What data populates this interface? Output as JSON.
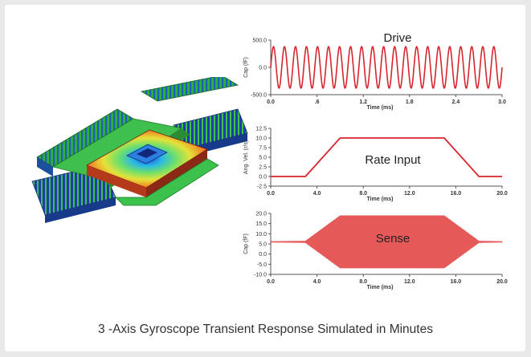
{
  "caption": "3 -Axis Gyroscope Transient Response Simulated in Minutes",
  "colors": {
    "signal": "#d7262d",
    "sense": "#e23c3c",
    "axis": "#555555",
    "text": "#333333"
  },
  "chart_data": [
    {
      "type": "line",
      "title": "Drive",
      "xlabel": "Time (ms)",
      "ylabel": "Cap (fF)",
      "xlim": [
        0.0,
        3.0
      ],
      "ylim": [
        -500.0,
        500.0
      ],
      "xticks": [
        "0.0",
        ".6",
        "1.2",
        "1.8",
        "2.4",
        "3.0"
      ],
      "xtick_values": [
        0.0,
        0.6,
        1.2,
        1.8,
        2.4,
        3.0
      ],
      "yticks": [
        "500.0",
        "0.0",
        "-500.0"
      ],
      "ytick_values": [
        500,
        0,
        -500
      ],
      "series": [
        {
          "signal": "sinusoid",
          "amplitude": 380,
          "cycles": 21
        }
      ]
    },
    {
      "type": "line",
      "title": "Rate Input",
      "xlabel": "Time (ms)",
      "ylabel": "Ang. Vel. (r/s)",
      "xlim": [
        0.0,
        20.0
      ],
      "ylim": [
        -2.5,
        12.5
      ],
      "xticks": [
        "0.0",
        "4.0",
        "8.0",
        "12.0",
        "16.0",
        "20.0"
      ],
      "xtick_values": [
        0,
        4,
        8,
        12,
        16,
        20
      ],
      "yticks": [
        "12.5",
        "10.0",
        "7.5",
        "5.0",
        "2.5",
        "0.0",
        "-2.5"
      ],
      "ytick_values": [
        12.5,
        10,
        7.5,
        5,
        2.5,
        0,
        -2.5
      ],
      "series": [
        {
          "x": [
            0,
            3,
            6,
            15,
            18,
            20
          ],
          "y": [
            0,
            0,
            10,
            10,
            0,
            0
          ]
        }
      ]
    },
    {
      "type": "line",
      "title": "Sense",
      "xlabel": "Time (ms)",
      "ylabel": "Cap (fF)",
      "xlim": [
        0.0,
        20.0
      ],
      "ylim": [
        -10.0,
        20.0
      ],
      "xticks": [
        "0.0",
        "4.0",
        "8.0",
        "12.0",
        "16.0",
        "20.0"
      ],
      "xtick_values": [
        0,
        4,
        8,
        12,
        16,
        20
      ],
      "yticks": [
        "20.0",
        "15.0",
        "10.0",
        "5.0",
        "0.0",
        "-5.0",
        "-10.0"
      ],
      "ytick_values": [
        20,
        15,
        10,
        5,
        0,
        -5,
        -10
      ],
      "series": [
        {
          "baseline": 6,
          "envelope_x": [
            0,
            3,
            6,
            15,
            18,
            20
          ],
          "envelope_amp": [
            0.3,
            0.5,
            13,
            13,
            0.5,
            0.3
          ]
        }
      ]
    }
  ]
}
